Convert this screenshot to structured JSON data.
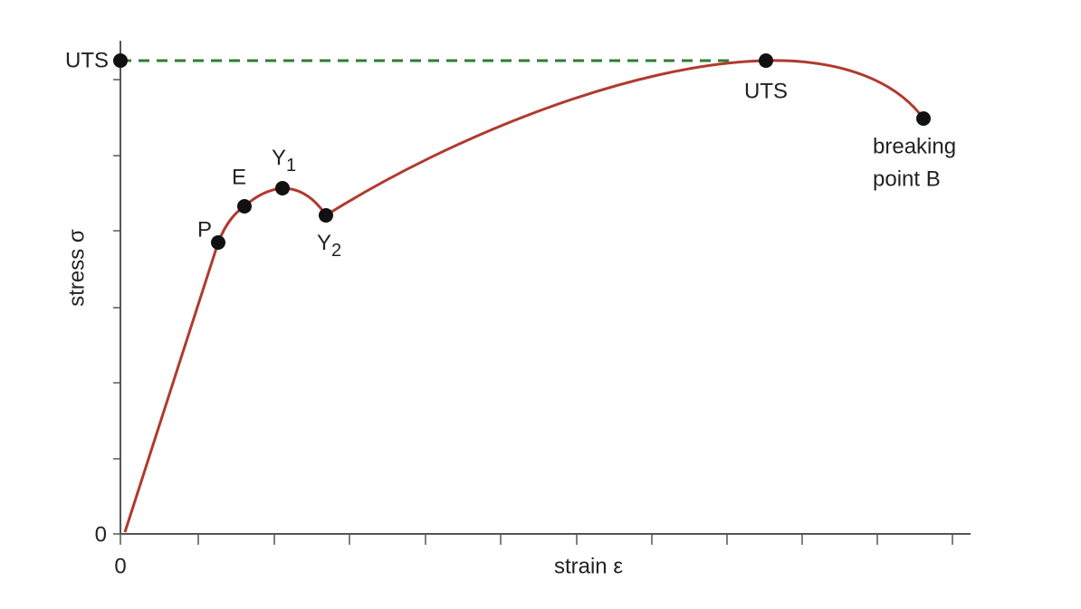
{
  "axes": {
    "y_label": "stress σ",
    "x_label": "strain ε",
    "y_origin": "0",
    "x_origin": "0",
    "y_top": "UTS"
  },
  "points": [
    {
      "label": "P"
    },
    {
      "label": "E"
    },
    {
      "label": "Y",
      "subscript": "1"
    },
    {
      "label": "Y",
      "subscript": "2"
    },
    {
      "label": "UTS"
    },
    {
      "label": [
        "breaking",
        "point B"
      ]
    }
  ]
}
